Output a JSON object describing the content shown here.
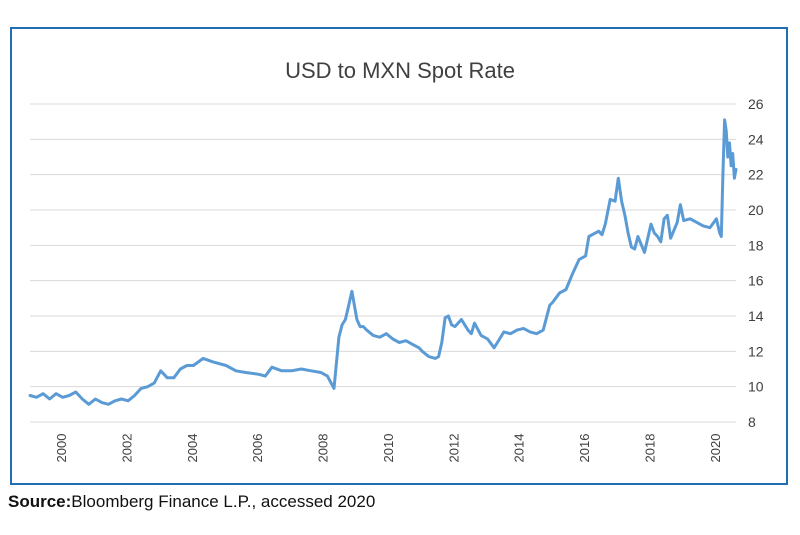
{
  "title": "USD to MXN Spot Rate",
  "source": {
    "label": "Source:",
    "text": "Bloomberg Finance L.P., accessed 2020"
  },
  "colors": {
    "line": "#5b9bd5",
    "grid": "#d9d9d9",
    "frame": "#1f6fb2",
    "text": "#404040"
  },
  "chart_data": {
    "type": "line",
    "title": "USD to MXN Spot Rate",
    "xlabel": "",
    "ylabel": "",
    "xlim": [
      1999.0,
      2020.6
    ],
    "ylim": [
      8,
      26
    ],
    "y_ticks": [
      8,
      10,
      12,
      14,
      16,
      18,
      20,
      22,
      24,
      26
    ],
    "x_ticks": [
      2000,
      2002,
      2004,
      2006,
      2008,
      2010,
      2012,
      2014,
      2016,
      2018,
      2020
    ],
    "x_tick_labels": [
      "2000",
      "2002",
      "2004",
      "2006",
      "2008",
      "2010",
      "2012",
      "2014",
      "2016",
      "2018",
      "2020"
    ],
    "y_axis_position": "right",
    "grid": true,
    "legend": "none",
    "series": [
      {
        "x": [
          1999.0,
          1999.2,
          1999.4,
          1999.6,
          1999.8,
          2000.0,
          2000.2,
          2000.4,
          2000.6,
          2000.8,
          2001.0,
          2001.2,
          2001.4,
          2001.6,
          2001.8,
          2002.0,
          2002.2,
          2002.4,
          2002.6,
          2002.8,
          2003.0,
          2003.2,
          2003.4,
          2003.6,
          2003.8,
          2004.0,
          2004.3,
          2004.6,
          2005.0,
          2005.3,
          2005.6,
          2006.0,
          2006.2,
          2006.4,
          2006.7,
          2007.0,
          2007.3,
          2007.6,
          2007.9,
          2008.1,
          2008.3,
          2008.45,
          2008.55,
          2008.65,
          2008.75,
          2008.85,
          2009.0,
          2009.1,
          2009.2,
          2009.3,
          2009.5,
          2009.7,
          2009.9,
          2010.1,
          2010.3,
          2010.5,
          2010.7,
          2010.9,
          2011.0,
          2011.2,
          2011.4,
          2011.5,
          2011.6,
          2011.7,
          2011.8,
          2011.9,
          2012.0,
          2012.2,
          2012.4,
          2012.5,
          2012.6,
          2012.8,
          2013.0,
          2013.2,
          2013.3,
          2013.5,
          2013.7,
          2013.9,
          2014.1,
          2014.3,
          2014.5,
          2014.7,
          2014.9,
          2015.0,
          2015.2,
          2015.4,
          2015.6,
          2015.8,
          2016.0,
          2016.1,
          2016.2,
          2016.4,
          2016.5,
          2016.6,
          2016.75,
          2016.9,
          2017.0,
          2017.1,
          2017.2,
          2017.3,
          2017.4,
          2017.5,
          2017.6,
          2017.8,
          2018.0,
          2018.1,
          2018.2,
          2018.3,
          2018.4,
          2018.5,
          2018.6,
          2018.8,
          2018.9,
          2019.0,
          2019.2,
          2019.4,
          2019.6,
          2019.8,
          2020.0,
          2020.1,
          2020.15,
          2020.2,
          2020.25,
          2020.3,
          2020.35,
          2020.4,
          2020.45,
          2020.5,
          2020.55,
          2020.6
        ],
        "values": [
          9.5,
          9.4,
          9.6,
          9.3,
          9.6,
          9.4,
          9.5,
          9.7,
          9.3,
          9.0,
          9.3,
          9.1,
          9.0,
          9.2,
          9.3,
          9.2,
          9.5,
          9.9,
          10.0,
          10.2,
          10.9,
          10.5,
          10.5,
          11.0,
          11.2,
          11.2,
          11.6,
          11.4,
          11.2,
          10.9,
          10.8,
          10.7,
          10.6,
          11.1,
          10.9,
          10.9,
          11.0,
          10.9,
          10.8,
          10.6,
          9.9,
          12.8,
          13.5,
          13.8,
          14.6,
          15.4,
          13.8,
          13.4,
          13.4,
          13.2,
          12.9,
          12.8,
          13.0,
          12.7,
          12.5,
          12.6,
          12.4,
          12.2,
          12.0,
          11.7,
          11.6,
          11.7,
          12.5,
          13.9,
          14.0,
          13.5,
          13.4,
          13.8,
          13.2,
          13.0,
          13.6,
          12.9,
          12.7,
          12.2,
          12.5,
          13.1,
          13.0,
          13.2,
          13.3,
          13.1,
          13.0,
          13.2,
          14.6,
          14.8,
          15.3,
          15.5,
          16.4,
          17.2,
          17.4,
          18.5,
          18.6,
          18.8,
          18.6,
          19.2,
          20.6,
          20.5,
          21.8,
          20.5,
          19.7,
          18.7,
          17.9,
          17.8,
          18.5,
          17.6,
          19.2,
          18.7,
          18.5,
          18.2,
          19.5,
          19.7,
          18.4,
          19.3,
          20.3,
          19.4,
          19.5,
          19.3,
          19.1,
          19.0,
          19.5,
          18.7,
          18.5,
          22.0,
          25.1,
          24.5,
          23.0,
          23.8,
          22.5,
          23.2,
          21.8,
          22.3
        ]
      }
    ]
  }
}
